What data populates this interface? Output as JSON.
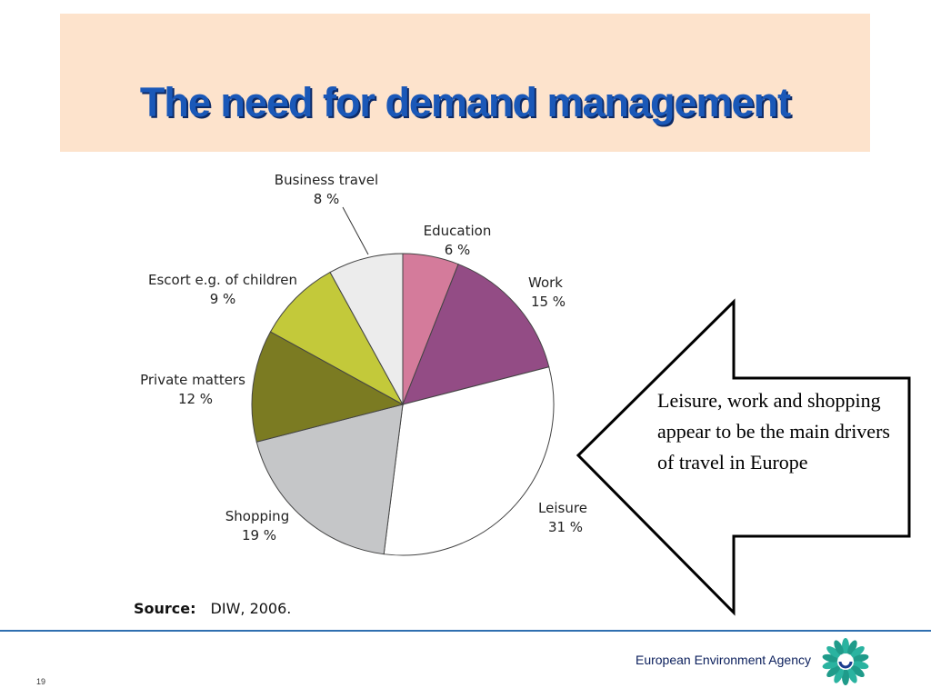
{
  "slide": {
    "title": "The need for demand management",
    "source_label": "Source:",
    "source_text": "DIW, 2006.",
    "callout_text": "Leisure, work and shopping appear to be the main drivers of travel in Europe",
    "footer_agency": "European Environment Agency",
    "page_number": "19"
  },
  "chart_data": {
    "type": "pie",
    "slices": [
      {
        "name": "Education",
        "value": 6,
        "label": "6 %",
        "color": "#d47b9b"
      },
      {
        "name": "Work",
        "value": 15,
        "label": "15 %",
        "color": "#934c85"
      },
      {
        "name": "Leisure",
        "value": 31,
        "label": "31 %",
        "color": "#ffffff"
      },
      {
        "name": "Shopping",
        "value": 19,
        "label": "19 %",
        "color": "#c5c6c8"
      },
      {
        "name": "Private matters",
        "value": 12,
        "label": "12 %",
        "color": "#7b7b22"
      },
      {
        "name": "Escort e.g. of children",
        "value": 9,
        "label": "9 %",
        "color": "#c3c93a"
      },
      {
        "name": "Business travel",
        "value": 8,
        "label": "8 %",
        "color": "#ececec"
      }
    ]
  }
}
